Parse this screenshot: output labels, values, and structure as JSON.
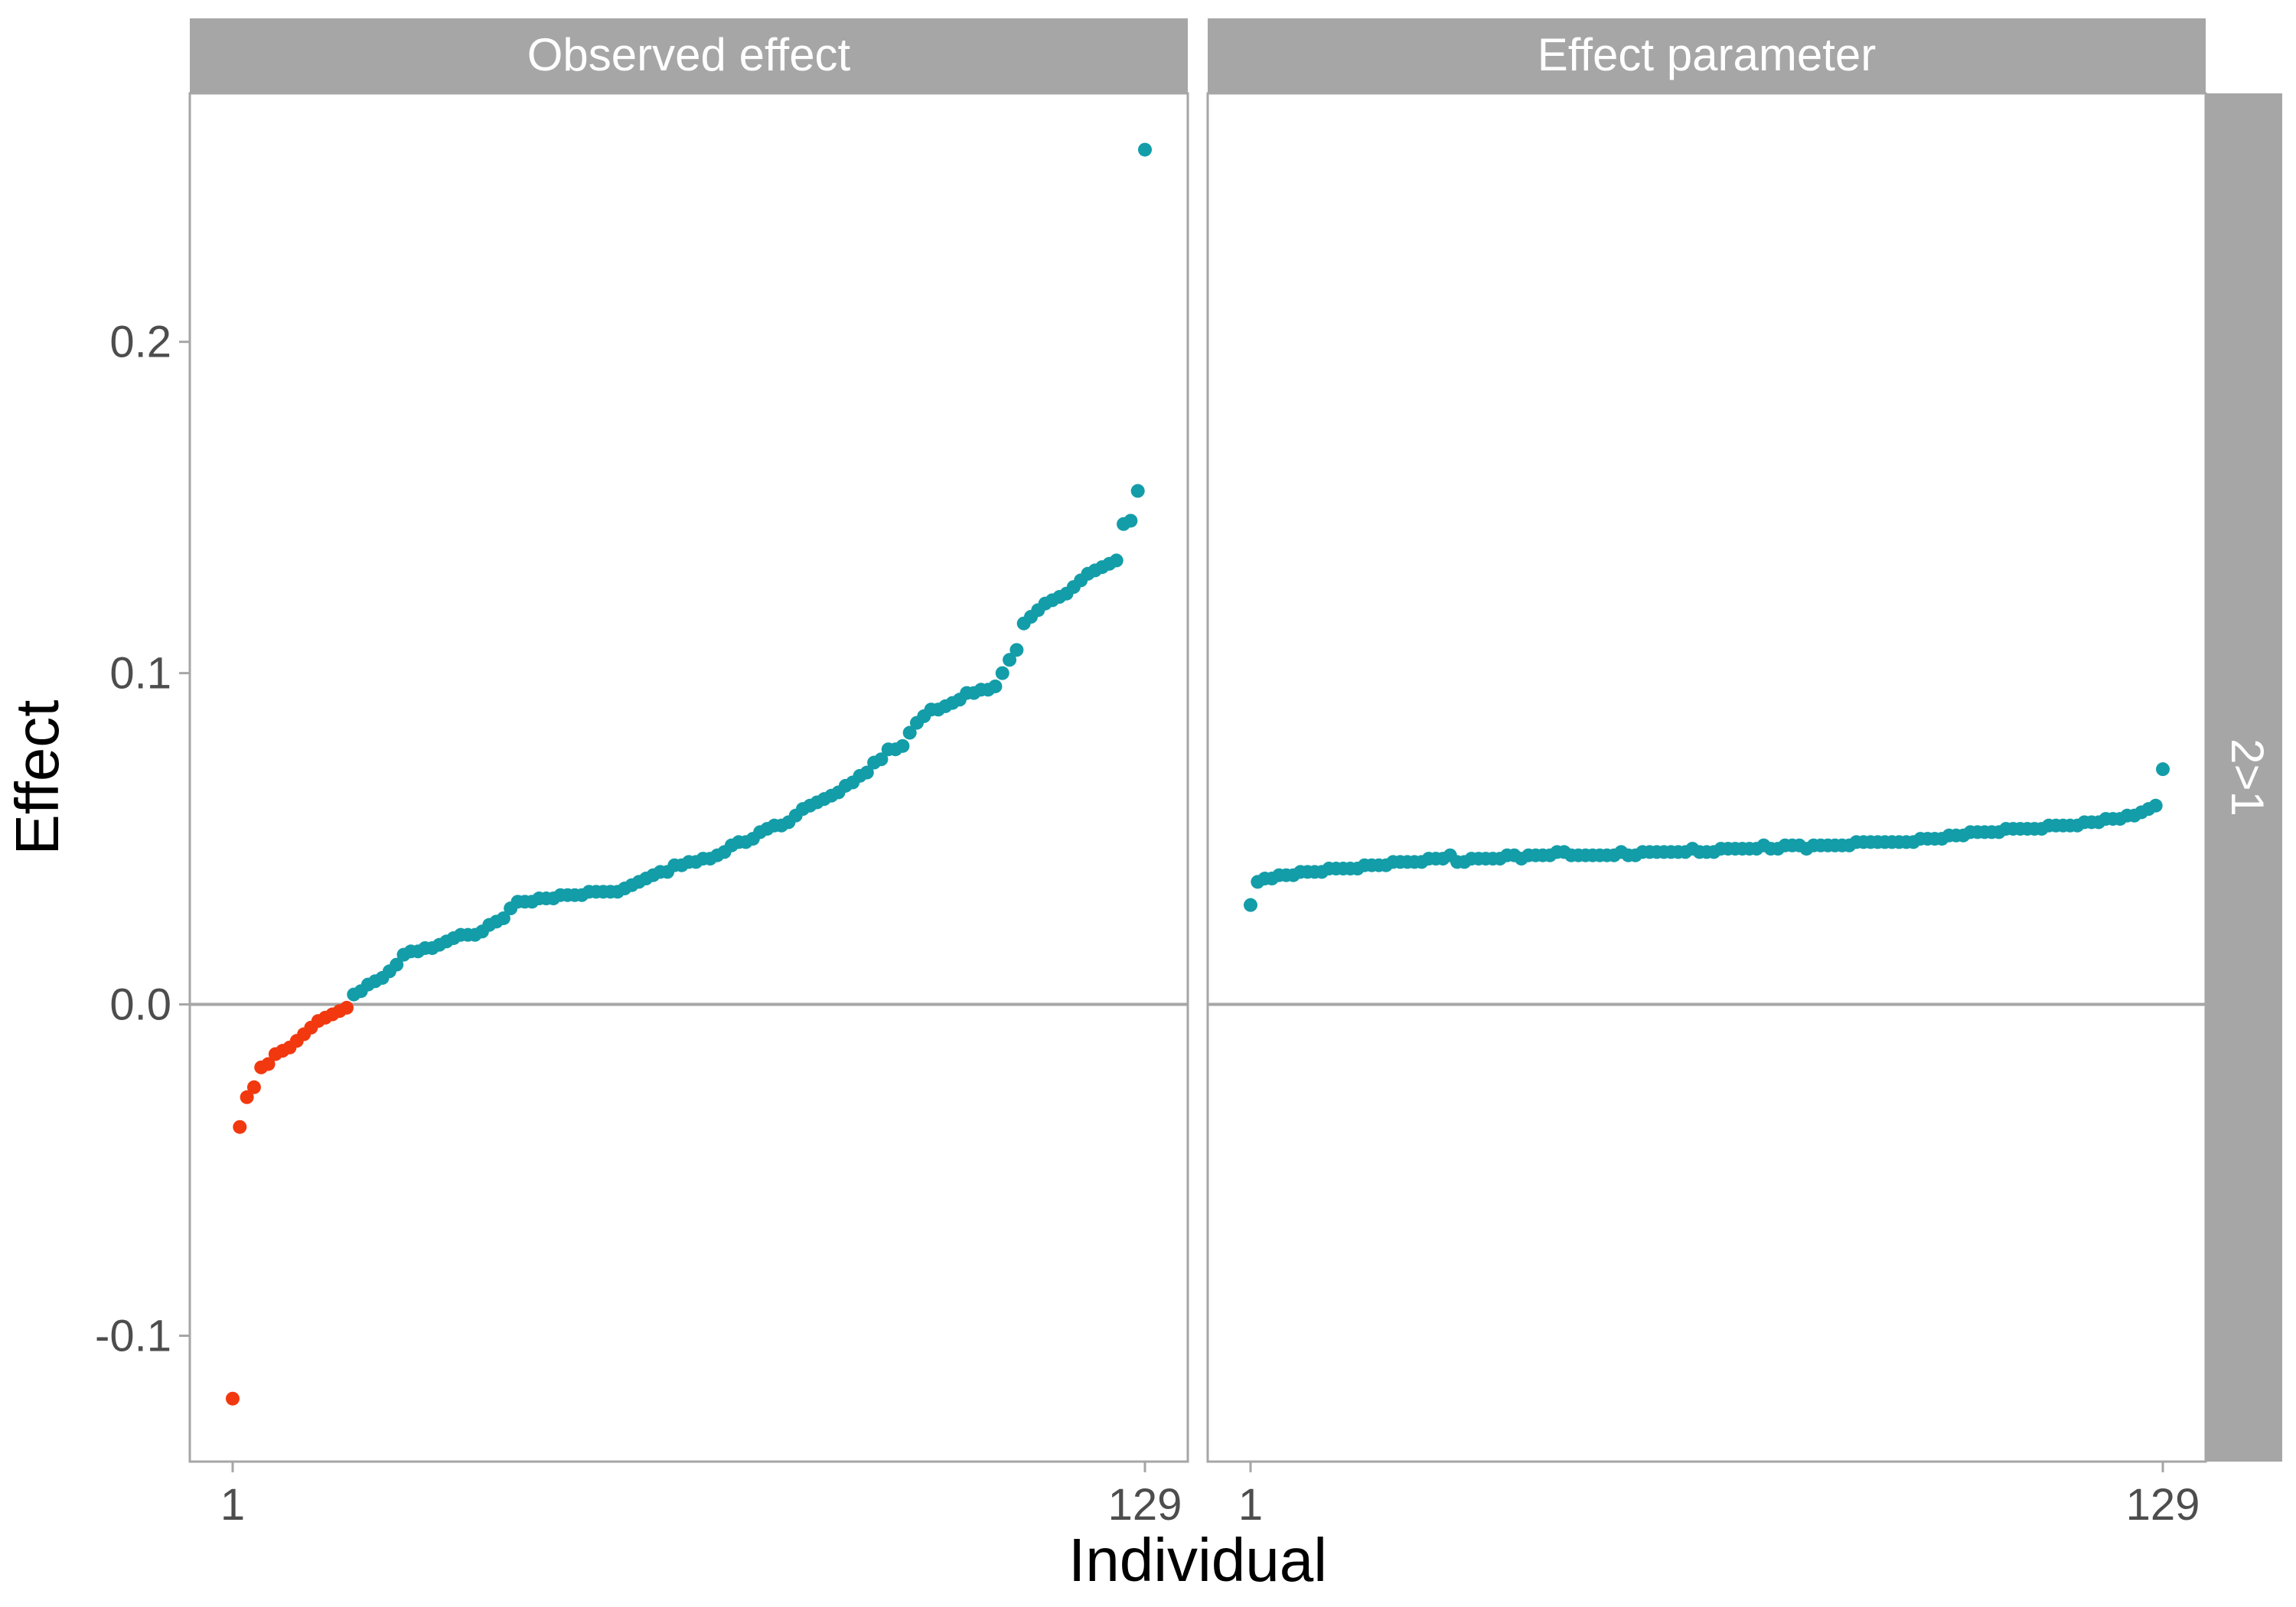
{
  "chart_data": {
    "type": "scatter",
    "title": "",
    "xlabel": "Individual",
    "ylabel": "Effect",
    "row_strip": "2>1",
    "colors": {
      "negative": "#F2380F",
      "positive": "#139DA8",
      "strip": "#A6A6A6",
      "panel_border": "#A6A6A6",
      "zero_line": "#A6A6A6"
    },
    "xlim": [
      1,
      129
    ],
    "x_ticks": [
      1,
      129
    ],
    "ylim": [
      -0.138,
      0.275
    ],
    "y_ticks": [
      -0.1,
      0.0,
      0.1,
      0.2
    ],
    "y_tick_labels": [
      "-0.1",
      "0.0",
      "0.1",
      "0.2"
    ],
    "x_tick_labels": [
      "1",
      "129"
    ],
    "grid": false,
    "reference_line_y": 0,
    "panels": [
      {
        "name": "Observed effect",
        "x": [
          1,
          2,
          3,
          4,
          5,
          6,
          7,
          8,
          9,
          10,
          11,
          12,
          13,
          14,
          15,
          16,
          17,
          18,
          19,
          20,
          21,
          22,
          23,
          24,
          25,
          26,
          27,
          28,
          29,
          30,
          31,
          32,
          33,
          34,
          35,
          36,
          37,
          38,
          39,
          40,
          41,
          42,
          43,
          44,
          45,
          46,
          47,
          48,
          49,
          50,
          51,
          52,
          53,
          54,
          55,
          56,
          57,
          58,
          59,
          60,
          61,
          62,
          63,
          64,
          65,
          66,
          67,
          68,
          69,
          70,
          71,
          72,
          73,
          74,
          75,
          76,
          77,
          78,
          79,
          80,
          81,
          82,
          83,
          84,
          85,
          86,
          87,
          88,
          89,
          90,
          91,
          92,
          93,
          94,
          95,
          96,
          97,
          98,
          99,
          100,
          101,
          102,
          103,
          104,
          105,
          106,
          107,
          108,
          109,
          110,
          111,
          112,
          113,
          114,
          115,
          116,
          117,
          118,
          119,
          120,
          121,
          122,
          123,
          124,
          125,
          126,
          127,
          128,
          129
        ],
        "y": [
          -0.119,
          -0.037,
          -0.028,
          -0.025,
          -0.019,
          -0.018,
          -0.015,
          -0.014,
          -0.013,
          -0.011,
          -0.009,
          -0.007,
          -0.005,
          -0.004,
          -0.003,
          -0.002,
          -0.001,
          0.003,
          0.004,
          0.006,
          0.007,
          0.008,
          0.01,
          0.012,
          0.015,
          0.016,
          0.016,
          0.017,
          0.017,
          0.018,
          0.019,
          0.02,
          0.021,
          0.021,
          0.021,
          0.022,
          0.024,
          0.025,
          0.026,
          0.029,
          0.031,
          0.031,
          0.031,
          0.032,
          0.032,
          0.032,
          0.033,
          0.033,
          0.033,
          0.033,
          0.034,
          0.034,
          0.034,
          0.034,
          0.034,
          0.035,
          0.036,
          0.037,
          0.038,
          0.039,
          0.04,
          0.04,
          0.042,
          0.042,
          0.043,
          0.043,
          0.044,
          0.044,
          0.045,
          0.046,
          0.048,
          0.049,
          0.049,
          0.05,
          0.052,
          0.053,
          0.054,
          0.054,
          0.055,
          0.057,
          0.059,
          0.06,
          0.061,
          0.062,
          0.063,
          0.064,
          0.066,
          0.067,
          0.069,
          0.07,
          0.073,
          0.074,
          0.077,
          0.077,
          0.078,
          0.082,
          0.085,
          0.087,
          0.089,
          0.089,
          0.09,
          0.091,
          0.092,
          0.094,
          0.094,
          0.095,
          0.095,
          0.096,
          0.1,
          0.104,
          0.107,
          0.115,
          0.117,
          0.119,
          0.121,
          0.122,
          0.123,
          0.124,
          0.126,
          0.128,
          0.13,
          0.131,
          0.132,
          0.133,
          0.134,
          0.145,
          0.146,
          0.155,
          0.258
        ]
      },
      {
        "name": "Effect parameter",
        "x": [
          1,
          2,
          3,
          4,
          5,
          6,
          7,
          8,
          9,
          10,
          11,
          12,
          13,
          14,
          15,
          16,
          17,
          18,
          19,
          20,
          21,
          22,
          23,
          24,
          25,
          26,
          27,
          28,
          29,
          30,
          31,
          32,
          33,
          34,
          35,
          36,
          37,
          38,
          39,
          40,
          41,
          42,
          43,
          44,
          45,
          46,
          47,
          48,
          49,
          50,
          51,
          52,
          53,
          54,
          55,
          56,
          57,
          58,
          59,
          60,
          61,
          62,
          63,
          64,
          65,
          66,
          67,
          68,
          69,
          70,
          71,
          72,
          73,
          74,
          75,
          76,
          77,
          78,
          79,
          80,
          81,
          82,
          83,
          84,
          85,
          86,
          87,
          88,
          89,
          90,
          91,
          92,
          93,
          94,
          95,
          96,
          97,
          98,
          99,
          100,
          101,
          102,
          103,
          104,
          105,
          106,
          107,
          108,
          109,
          110,
          111,
          112,
          113,
          114,
          115,
          116,
          117,
          118,
          119,
          120,
          121,
          122,
          123,
          124,
          125,
          126,
          127,
          128,
          129
        ],
        "y": [
          0.03,
          0.037,
          0.038,
          0.038,
          0.039,
          0.039,
          0.039,
          0.04,
          0.04,
          0.04,
          0.04,
          0.041,
          0.041,
          0.041,
          0.041,
          0.041,
          0.042,
          0.042,
          0.042,
          0.042,
          0.043,
          0.043,
          0.043,
          0.043,
          0.043,
          0.044,
          0.044,
          0.044,
          0.045,
          0.043,
          0.043,
          0.044,
          0.044,
          0.044,
          0.044,
          0.044,
          0.045,
          0.045,
          0.044,
          0.045,
          0.045,
          0.045,
          0.045,
          0.046,
          0.046,
          0.045,
          0.045,
          0.045,
          0.045,
          0.045,
          0.045,
          0.045,
          0.046,
          0.045,
          0.045,
          0.046,
          0.046,
          0.046,
          0.046,
          0.046,
          0.046,
          0.046,
          0.047,
          0.046,
          0.046,
          0.046,
          0.047,
          0.047,
          0.047,
          0.047,
          0.047,
          0.047,
          0.048,
          0.047,
          0.047,
          0.048,
          0.048,
          0.048,
          0.047,
          0.048,
          0.048,
          0.048,
          0.048,
          0.048,
          0.048,
          0.049,
          0.049,
          0.049,
          0.049,
          0.049,
          0.049,
          0.049,
          0.049,
          0.049,
          0.05,
          0.05,
          0.05,
          0.05,
          0.051,
          0.051,
          0.051,
          0.052,
          0.052,
          0.052,
          0.052,
          0.052,
          0.053,
          0.053,
          0.053,
          0.053,
          0.053,
          0.053,
          0.054,
          0.054,
          0.054,
          0.054,
          0.054,
          0.055,
          0.055,
          0.055,
          0.056,
          0.056,
          0.056,
          0.057,
          0.057,
          0.058,
          0.059,
          0.06,
          0.071
        ]
      }
    ]
  }
}
